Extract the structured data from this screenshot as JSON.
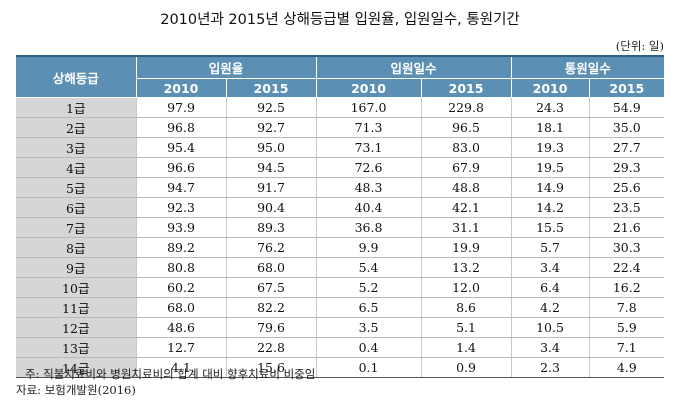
{
  "title": "2010년과 2015년 상해등급별 입원율, 입원일수, 통원기간",
  "unit": "(단위: 일)",
  "header": {
    "grade_label": "상해등급",
    "groups": [
      "입원율",
      "입원일수",
      "통원일수"
    ],
    "years": [
      "2010",
      "2015",
      "2010",
      "2015",
      "2010",
      "2015"
    ]
  },
  "rows": [
    [
      "1급",
      "97.9",
      "92.5",
      "167.0",
      "229.8",
      "24.3",
      "54.9"
    ],
    [
      "2급",
      "96.8",
      "92.7",
      "71.3",
      "96.5",
      "18.1",
      "35.0"
    ],
    [
      "3급",
      "95.4",
      "95.0",
      "73.1",
      "83.0",
      "19.3",
      "27.7"
    ],
    [
      "4급",
      "96.6",
      "94.5",
      "72.6",
      "67.9",
      "19.5",
      "29.3"
    ],
    [
      "5급",
      "94.7",
      "91.7",
      "48.3",
      "48.8",
      "14.9",
      "25.6"
    ],
    [
      "6급",
      "92.3",
      "90.4",
      "40.4",
      "42.1",
      "14.2",
      "23.5"
    ],
    [
      "7급",
      "93.9",
      "89.3",
      "36.8",
      "31.1",
      "15.5",
      "21.6"
    ],
    [
      "8급",
      "89.2",
      "76.2",
      "9.9",
      "19.9",
      "5.7",
      "30.3"
    ],
    [
      "9급",
      "80.8",
      "68.0",
      "5.4",
      "13.2",
      "3.4",
      "22.4"
    ],
    [
      "10급",
      "60.2",
      "67.5",
      "5.2",
      "12.0",
      "6.4",
      "16.2"
    ],
    [
      "11급",
      "68.0",
      "82.2",
      "6.5",
      "8.6",
      "4.2",
      "7.8"
    ],
    [
      "12급",
      "48.6",
      "79.6",
      "3.5",
      "5.1",
      "10.5",
      "5.9"
    ],
    [
      "13급",
      "12.7",
      "22.8",
      "0.4",
      "1.4",
      "3.4",
      "7.1"
    ],
    [
      "14급",
      "4.1",
      "15.6",
      "0.1",
      "0.9",
      "2.3",
      "4.9"
    ]
  ],
  "notes": {
    "note": "주: 직불치료비와 병원치료비의 합계 대비 향후치료비 비중임",
    "source": "자료: 보험개발원(2016)"
  }
}
